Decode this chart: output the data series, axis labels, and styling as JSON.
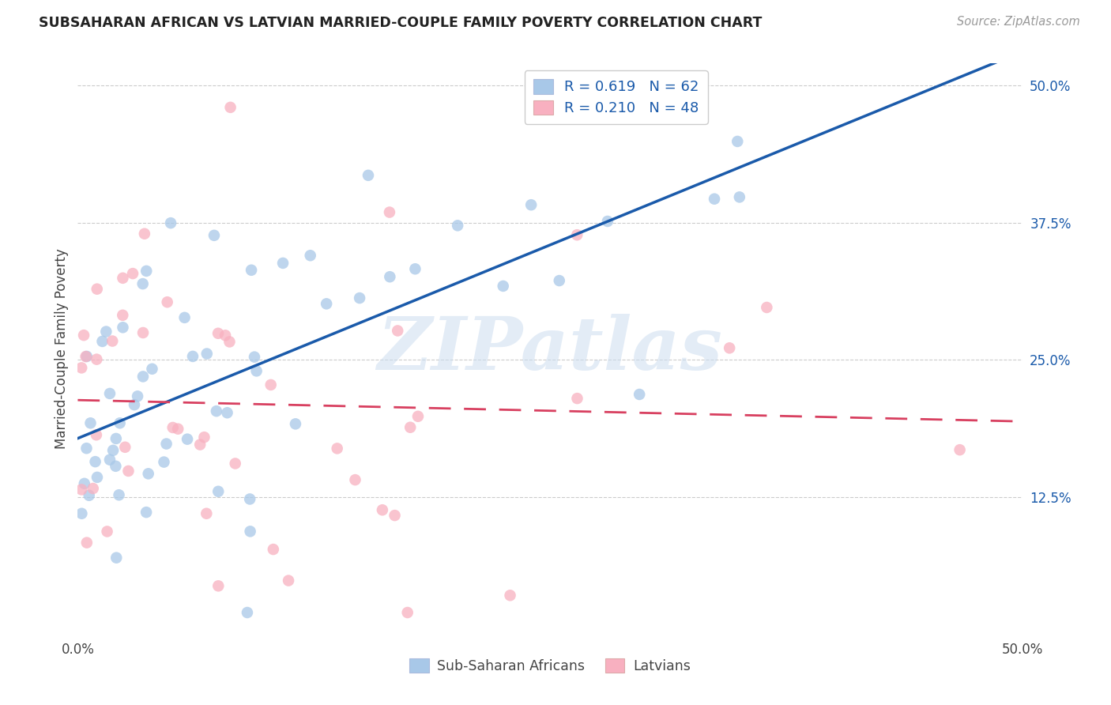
{
  "title": "SUBSAHARAN AFRICAN VS LATVIAN MARRIED-COUPLE FAMILY POVERTY CORRELATION CHART",
  "source": "Source: ZipAtlas.com",
  "ylabel": "Married-Couple Family Poverty",
  "blue_R": 0.619,
  "blue_N": 62,
  "pink_R": 0.21,
  "pink_N": 48,
  "blue_color": "#a8c8e8",
  "blue_line_color": "#1a5aaa",
  "pink_color": "#f8b0c0",
  "pink_line_color": "#d84060",
  "watermark_text": "ZIPatlas",
  "watermark_color": "#ccddf0",
  "legend_label_blue": "Sub-Saharan Africans",
  "legend_label_pink": "Latvians",
  "grid_color": "#cccccc",
  "title_color": "#222222",
  "source_color": "#999999",
  "axis_label_color": "#444444",
  "ytick_color": "#1a5aaa",
  "xtick_color": "#444444"
}
